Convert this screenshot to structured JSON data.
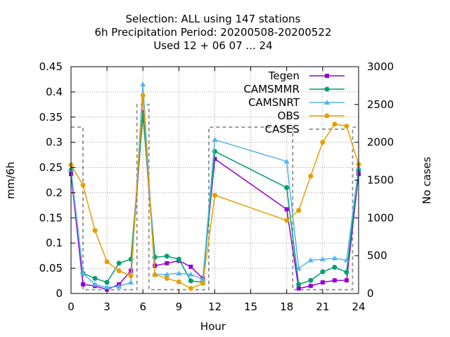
{
  "chart_data": {
    "type": "line",
    "title_lines": [
      "Selection: ALL using   147 stations",
      "6h Precipitation   Period: 20200508-20200522",
      "Used  12 + 06 07 ... 24"
    ],
    "xlabel": "Hour",
    "ylabel": "mm/6h",
    "y2label": "No cases",
    "xlim": [
      0,
      24
    ],
    "ylim": [
      0,
      0.45
    ],
    "y2lim": [
      0,
      3000
    ],
    "x_ticks": [
      "0",
      "3",
      "6",
      "9",
      "12",
      "15",
      "18",
      "21",
      "24"
    ],
    "y_ticks": [
      "0",
      "0.05",
      "0.1",
      "0.15",
      "0.2",
      "0.25",
      "0.3",
      "0.35",
      "0.4",
      "0.45"
    ],
    "y2_ticks": [
      "0",
      "500",
      "1000",
      "1500",
      "2000",
      "2500",
      "3000"
    ],
    "grid": true,
    "legend_position": "top-right",
    "x": [
      0,
      1,
      2,
      3,
      4,
      5,
      6,
      7,
      8,
      9,
      10,
      11,
      12,
      18,
      19,
      20,
      21,
      22,
      23,
      24
    ],
    "series": [
      {
        "name": "Tegen",
        "color": "#9400d3",
        "marker": "square",
        "values": [
          0.237,
          0.018,
          0.015,
          0.008,
          0.018,
          0.045,
          0.36,
          0.055,
          0.06,
          0.065,
          0.053,
          0.03,
          0.267,
          0.167,
          0.01,
          0.015,
          0.022,
          0.026,
          0.026,
          0.237
        ]
      },
      {
        "name": "CAMSMMR",
        "color": "#009e73",
        "marker": "circle",
        "values": [
          0.245,
          0.04,
          0.03,
          0.022,
          0.06,
          0.068,
          0.355,
          0.072,
          0.074,
          0.068,
          0.025,
          0.022,
          0.282,
          0.21,
          0.018,
          0.026,
          0.043,
          0.052,
          0.042,
          0.245
        ]
      },
      {
        "name": "CAMSNRT",
        "color": "#56b4e9",
        "marker": "triangle",
        "values": [
          0.245,
          0.04,
          0.018,
          0.012,
          0.014,
          0.022,
          0.415,
          0.038,
          0.038,
          0.04,
          0.038,
          0.028,
          0.305,
          0.262,
          0.05,
          0.066,
          0.068,
          0.07,
          0.066,
          0.25
        ]
      },
      {
        "name": "OBS",
        "color": "#e69f00",
        "marker": "circle",
        "values": [
          0.255,
          0.215,
          0.125,
          0.063,
          0.045,
          0.035,
          0.393,
          0.037,
          0.03,
          0.023,
          0.01,
          0.02,
          0.195,
          0.145,
          0.165,
          0.233,
          0.3,
          0.336,
          0.332,
          0.256
        ]
      },
      {
        "name": "CASES",
        "color": "#999999",
        "style": "dashed",
        "axis": "y2",
        "steps": [
          {
            "x": 0,
            "y": 2200
          },
          {
            "x": 1,
            "y": 50
          },
          {
            "x": 5.5,
            "y": 2500
          },
          {
            "x": 6.5,
            "y": 50
          },
          {
            "x": 11.5,
            "y": 2200
          },
          {
            "x": 18.5,
            "y": 50
          },
          {
            "x": 23.5,
            "y": 2200
          }
        ]
      }
    ]
  }
}
